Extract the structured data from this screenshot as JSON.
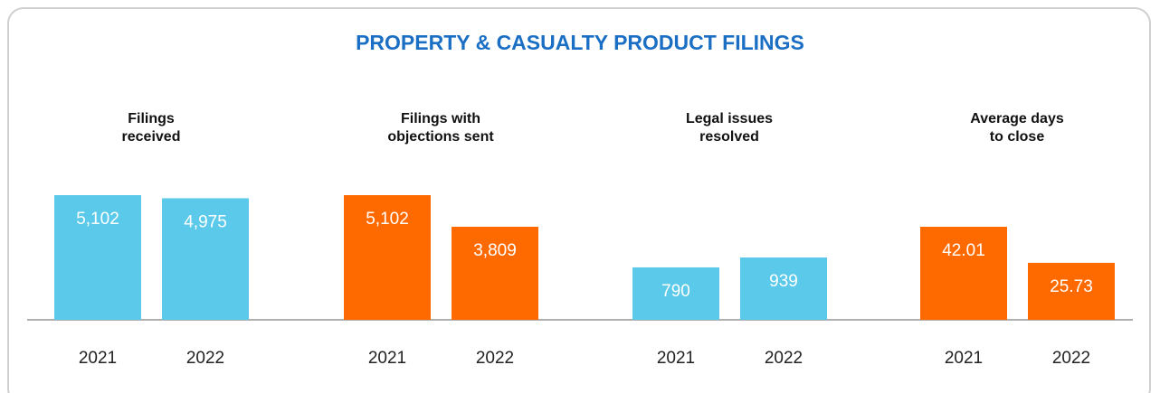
{
  "title": "PROPERTY & CASUALTY PRODUCT FILINGS",
  "chart_data": [
    {
      "type": "bar",
      "title": "Filings received",
      "categories": [
        "2021",
        "2022"
      ],
      "color": "#5bc9e9",
      "values": [
        5102,
        4975
      ],
      "value_labels": [
        "5,102",
        "4,975"
      ]
    },
    {
      "type": "bar",
      "title": "Filings with objections sent",
      "categories": [
        "2021",
        "2022"
      ],
      "color": "#ff6a00",
      "values": [
        5102,
        3809
      ],
      "value_labels": [
        "5,102",
        "3,809"
      ]
    },
    {
      "type": "bar",
      "title": "Legal issues resolved",
      "categories": [
        "2021",
        "2022"
      ],
      "color": "#5bc9e9",
      "values": [
        790,
        939
      ],
      "value_labels": [
        "790",
        "939"
      ]
    },
    {
      "type": "bar",
      "title": "Average days to close",
      "categories": [
        "2021",
        "2022"
      ],
      "color": "#ff6a00",
      "values": [
        42.01,
        25.73
      ],
      "value_labels": [
        "42.01",
        "25.73"
      ]
    }
  ]
}
